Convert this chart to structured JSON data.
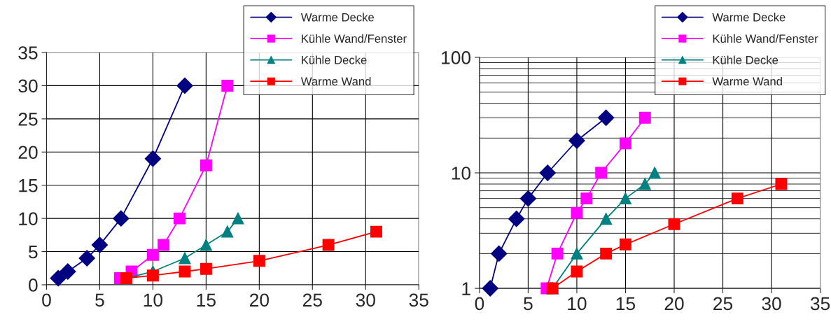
{
  "chart_data": [
    {
      "type": "line",
      "xlim": [
        0,
        35
      ],
      "xticks": [
        0,
        5,
        10,
        15,
        20,
        25,
        30,
        35
      ],
      "ylim": [
        0,
        35
      ],
      "yticks": [
        0,
        5,
        10,
        15,
        20,
        25,
        30,
        35
      ],
      "grid": true,
      "legend": "top right",
      "series": [
        {
          "name": "Warme Decke",
          "color": "#000080",
          "marker": "diamond",
          "x": [
            1.1,
            2,
            3.8,
            5,
            7,
            10,
            13
          ],
          "values": [
            1,
            2,
            4,
            6,
            10,
            19,
            30
          ]
        },
        {
          "name": "Kühle Wand/Fenster",
          "color": "#ff00ff",
          "marker": "square",
          "x": [
            6.9,
            8,
            10,
            11,
            12.5,
            15,
            17
          ],
          "values": [
            1,
            2,
            4.5,
            6,
            10,
            18,
            30
          ]
        },
        {
          "name": "Kühle Decke",
          "color": "#008080",
          "marker": "triangle",
          "x": [
            7.5,
            10,
            13,
            15,
            17,
            18
          ],
          "values": [
            1,
            2,
            4,
            6,
            8,
            10
          ]
        },
        {
          "name": "Warme Wand",
          "color": "#ff0000",
          "marker": "square",
          "x": [
            7.5,
            10,
            13,
            15,
            20,
            26.5,
            31
          ],
          "values": [
            1,
            1.4,
            2,
            2.4,
            3.6,
            6,
            8
          ]
        }
      ]
    },
    {
      "type": "line",
      "log": true,
      "xlim": [
        0,
        35
      ],
      "xticks": [
        0,
        5,
        10,
        15,
        20,
        25,
        30,
        35
      ],
      "ylim": [
        1,
        100
      ],
      "yticks": [
        1,
        10,
        100
      ],
      "grid": true,
      "legend": "top right",
      "series": [
        {
          "name": "Warme Decke",
          "color": "#000080",
          "marker": "diamond",
          "x": [
            1.1,
            2,
            3.8,
            5,
            7,
            10,
            13
          ],
          "values": [
            1,
            2,
            4,
            6,
            10,
            19,
            30
          ]
        },
        {
          "name": "Kühle Wand/Fenster",
          "color": "#ff00ff",
          "marker": "square",
          "x": [
            6.9,
            8,
            10,
            11,
            12.5,
            15,
            17
          ],
          "values": [
            1,
            2,
            4.5,
            6,
            10,
            18,
            30
          ]
        },
        {
          "name": "Kühle Decke",
          "color": "#008080",
          "marker": "triangle",
          "x": [
            7.5,
            10,
            13,
            15,
            17,
            18
          ],
          "values": [
            1,
            2,
            4,
            6,
            8,
            10
          ]
        },
        {
          "name": "Warme Wand",
          "color": "#ff0000",
          "marker": "square",
          "x": [
            7.5,
            10,
            13,
            15,
            20,
            26.5,
            31
          ],
          "values": [
            1,
            1.4,
            2,
            2.4,
            3.6,
            6,
            8
          ]
        }
      ]
    }
  ]
}
